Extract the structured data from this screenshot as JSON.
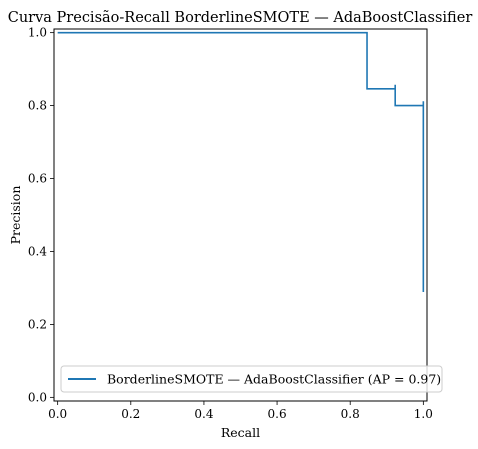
{
  "chart_data": {
    "type": "line",
    "title": "Curva Precisão-Recall BorderlineSMOTE — AdaBoostClassifier",
    "xlabel": "Recall",
    "ylabel": "Precision",
    "xlim": [
      -0.01,
      1.01
    ],
    "ylim": [
      -0.01,
      1.01
    ],
    "xticks": [
      0.0,
      0.2,
      0.4,
      0.6,
      0.8,
      1.0
    ],
    "xtick_labels": [
      "0.0",
      "0.2",
      "0.4",
      "0.6",
      "0.8",
      "1.0"
    ],
    "yticks": [
      0.0,
      0.2,
      0.4,
      0.6,
      0.8,
      1.0
    ],
    "ytick_labels": [
      "0.0",
      "0.2",
      "0.4",
      "0.6",
      "0.8",
      "1.0"
    ],
    "grid": false,
    "legend_position": "lower-right",
    "series": [
      {
        "name": "BorderlineSMOTE — AdaBoostClassifier (AP = 0.97)",
        "color": "#1f77b4",
        "drawstyle": "steps-post",
        "recall": [
          0.0,
          0.846,
          0.846,
          0.923,
          0.923,
          1.0,
          1.0
        ],
        "precision": [
          1.0,
          1.0,
          0.846,
          0.857,
          0.8,
          0.812,
          0.289
        ]
      }
    ]
  }
}
